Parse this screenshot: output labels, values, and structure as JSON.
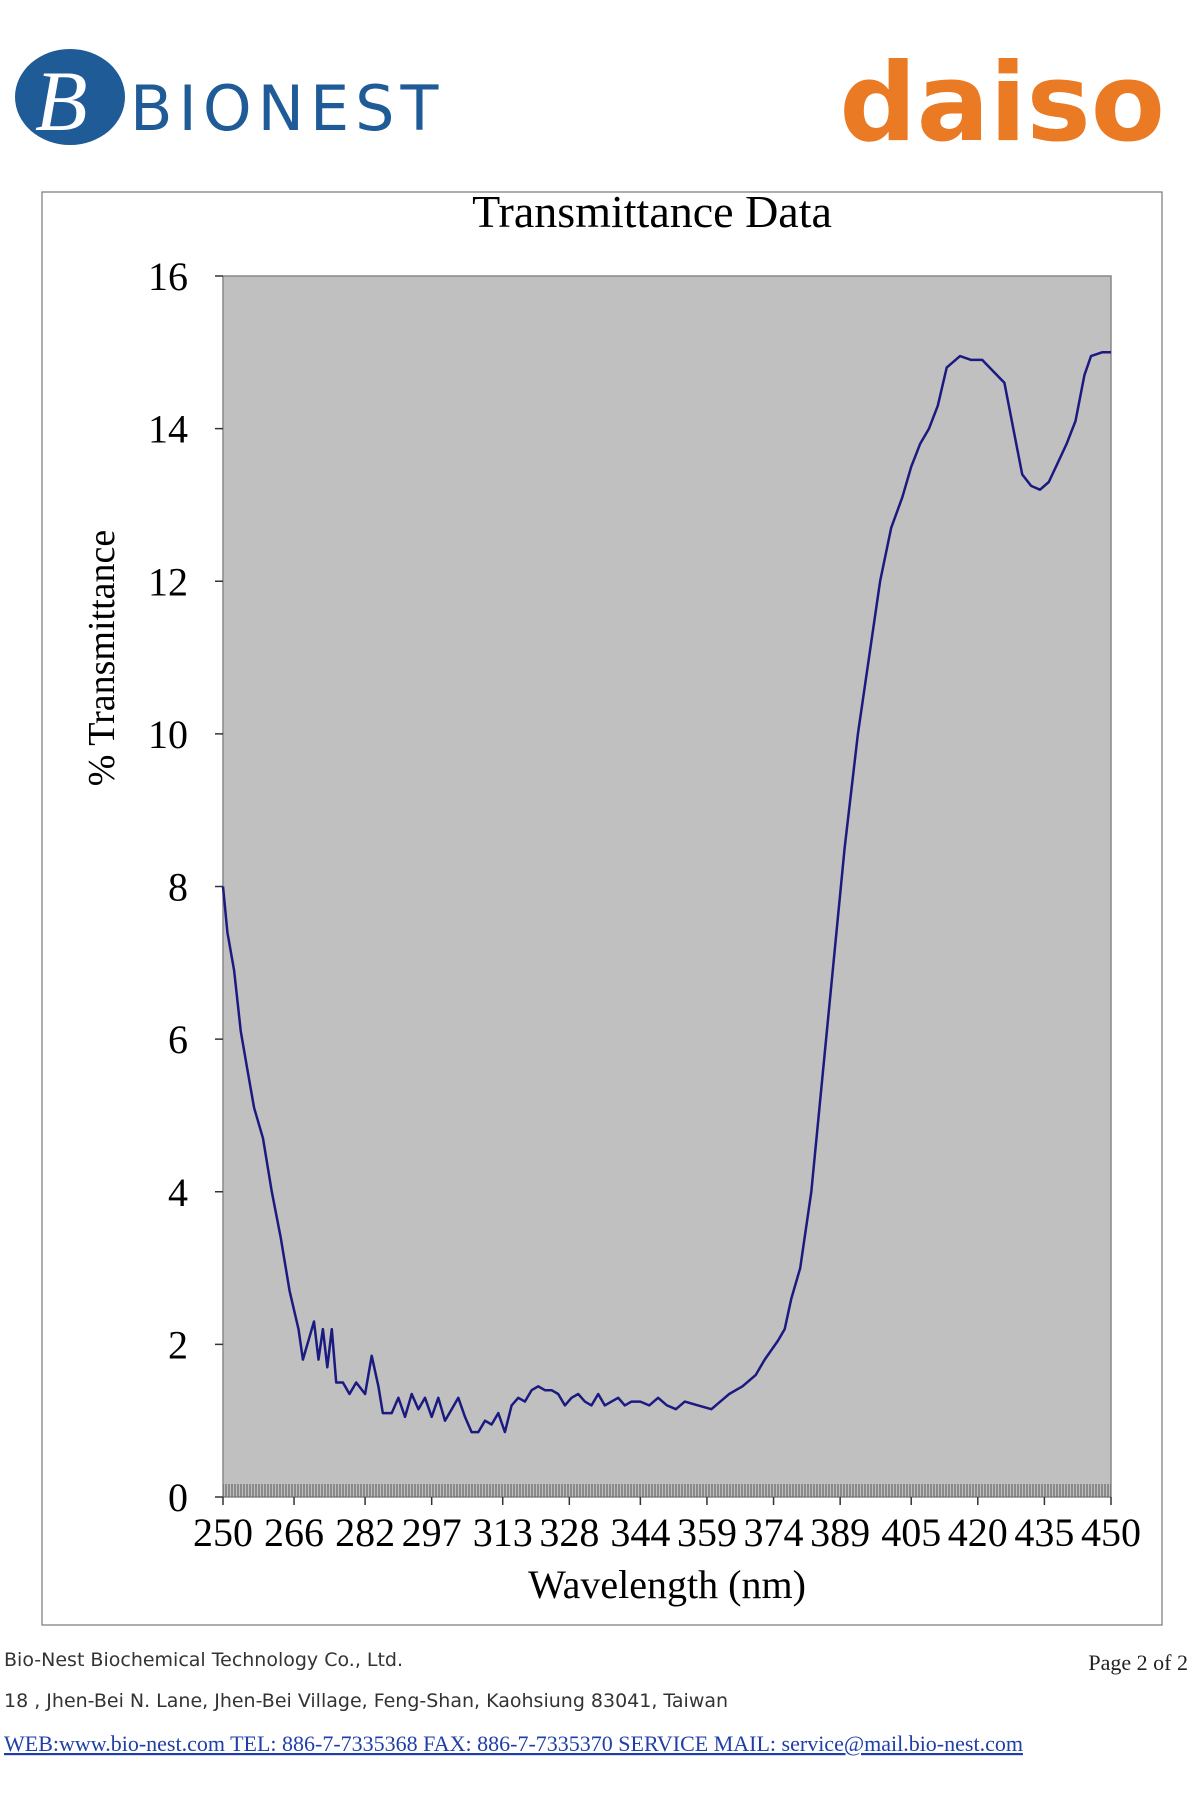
{
  "header": {
    "left_logo": "BIONEST",
    "right_logo": "daiso"
  },
  "chart_data": {
    "type": "line",
    "title": "Transmittance Data",
    "x_label": "Wavelength (nm)",
    "y_label": "% Transmittance",
    "color": "#1a1a80",
    "grid": false,
    "xlim": [
      250,
      450
    ],
    "xticks": [
      250,
      266,
      282,
      297,
      313,
      328,
      344,
      359,
      374,
      389,
      405,
      420,
      435,
      450
    ],
    "ylim": [
      0,
      16
    ],
    "yticks": [
      0,
      2,
      4,
      6,
      8,
      10,
      12,
      14,
      16
    ],
    "x": [
      250,
      251,
      252.5,
      254,
      255.5,
      257,
      259,
      261,
      263,
      265,
      267,
      268,
      269.5,
      270.5,
      271.5,
      272.5,
      273.5,
      274.5,
      275.5,
      277,
      278.5,
      280,
      282,
      283.5,
      285,
      286,
      288,
      289.5,
      291,
      292.5,
      294,
      295.5,
      297,
      298.5,
      300,
      301.5,
      303,
      304.5,
      306,
      307.5,
      309,
      310.5,
      312,
      313.5,
      315,
      316.5,
      318,
      319.5,
      321,
      322.5,
      324,
      325.5,
      327,
      328.5,
      330,
      331.5,
      333,
      334.5,
      336,
      337.5,
      339,
      340.5,
      342,
      344,
      346,
      348,
      350,
      352,
      354,
      357,
      360,
      362,
      364,
      367,
      370,
      372,
      375,
      376.5,
      378,
      380,
      382.5,
      385,
      387.5,
      390,
      393,
      395.5,
      398,
      400.5,
      403,
      405,
      407,
      409,
      411,
      413,
      416,
      418.5,
      421,
      423.5,
      426,
      428,
      430,
      432,
      434,
      436,
      438,
      440,
      442,
      444,
      445.5,
      448,
      450
    ],
    "values": [
      8.0,
      7.4,
      6.9,
      6.1,
      5.6,
      5.1,
      4.7,
      4.0,
      3.4,
      2.7,
      2.2,
      1.8,
      2.1,
      2.3,
      1.8,
      2.2,
      1.7,
      2.2,
      1.5,
      1.5,
      1.35,
      1.5,
      1.35,
      1.85,
      1.45,
      1.1,
      1.1,
      1.3,
      1.05,
      1.35,
      1.15,
      1.3,
      1.05,
      1.3,
      1.0,
      1.15,
      1.3,
      1.05,
      0.85,
      0.85,
      1.0,
      0.95,
      1.1,
      0.85,
      1.2,
      1.3,
      1.25,
      1.4,
      1.45,
      1.4,
      1.4,
      1.35,
      1.2,
      1.3,
      1.35,
      1.25,
      1.2,
      1.35,
      1.2,
      1.25,
      1.3,
      1.2,
      1.25,
      1.25,
      1.2,
      1.3,
      1.2,
      1.15,
      1.25,
      1.2,
      1.15,
      1.25,
      1.35,
      1.45,
      1.6,
      1.8,
      2.05,
      2.2,
      2.6,
      3.0,
      4.0,
      5.5,
      7.0,
      8.5,
      10.0,
      11.0,
      12.0,
      12.7,
      13.1,
      13.5,
      13.8,
      14.0,
      14.3,
      14.8,
      14.95,
      14.9,
      14.9,
      14.75,
      14.6,
      14.0,
      13.4,
      13.25,
      13.2,
      13.3,
      13.55,
      13.8,
      14.1,
      14.7,
      14.95,
      15.0,
      15.0
    ]
  },
  "footer": {
    "company": "Bio-Nest Biochemical Technology Co., Ltd.",
    "page": "Page 2  of  2",
    "address": "18 , Jhen-Bei N. Lane, Jhen-Bei Village, Feng-Shan, Kaohsiung 83041, Taiwan",
    "contact": "WEB:www.bio-nest.com  TEL: 886-7-7335368   FAX: 886-7-7335370   SERVICE MAIL: service@mail.bio-nest.com"
  }
}
